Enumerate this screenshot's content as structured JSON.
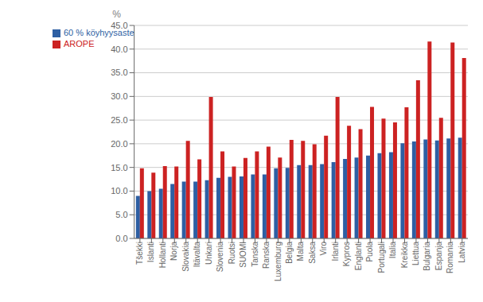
{
  "chart_data": {
    "type": "bar",
    "ylabel": "%",
    "categories": [
      "Tšekki",
      "Islanti",
      "Hollanti",
      "Norja",
      "Slovakia",
      "Itävalta",
      "Unkari",
      "Slovenia",
      "Ruotsi",
      "SUOMI",
      "Tanska",
      "Ranska",
      "Luxemburg",
      "Belgia",
      "Malta",
      "Saksa",
      "Viro",
      "Irlanti",
      "Kypros",
      "Englanti",
      "Puola",
      "Portugali",
      "Italia",
      "Kreikka",
      "Liettua",
      "Bulgaria",
      "Espanja",
      "Romania",
      "Latvia"
    ],
    "series": [
      {
        "name": "60 % köyhyysaste",
        "color": "#2E5FA3",
        "values": [
          9.0,
          10.0,
          10.5,
          11.5,
          12.0,
          12.0,
          12.3,
          12.8,
          13.0,
          13.1,
          13.5,
          13.5,
          14.8,
          14.9,
          15.5,
          15.5,
          15.7,
          16.1,
          16.8,
          17.1,
          17.5,
          18.0,
          18.2,
          20.1,
          20.5,
          20.9,
          20.7,
          21.1,
          21.3
        ]
      },
      {
        "name": "AROPE",
        "color": "#CC2222",
        "values": [
          14.8,
          13.9,
          15.3,
          15.2,
          20.6,
          16.7,
          29.9,
          18.4,
          15.2,
          17.0,
          18.4,
          19.4,
          17.1,
          20.8,
          20.6,
          19.9,
          21.7,
          29.9,
          23.8,
          23.1,
          27.8,
          25.3,
          24.5,
          27.7,
          33.4,
          41.6,
          25.5,
          41.4,
          38.1
        ]
      }
    ],
    "ylim": [
      0,
      45
    ],
    "yticks": [
      {
        "value": 0,
        "label": "0.0"
      },
      {
        "value": 5,
        "label": "5.0"
      },
      {
        "value": 10,
        "label": "10.0"
      },
      {
        "value": 15,
        "label": "15.0"
      },
      {
        "value": 20,
        "label": "20.0"
      },
      {
        "value": 25,
        "label": "25.0"
      },
      {
        "value": 30,
        "label": "30.0"
      },
      {
        "value": 35,
        "label": "35.0"
      },
      {
        "value": 40,
        "label": "40.0"
      },
      {
        "value": 45,
        "label": "45.0"
      }
    ],
    "grid": true,
    "legend": "upper left"
  }
}
